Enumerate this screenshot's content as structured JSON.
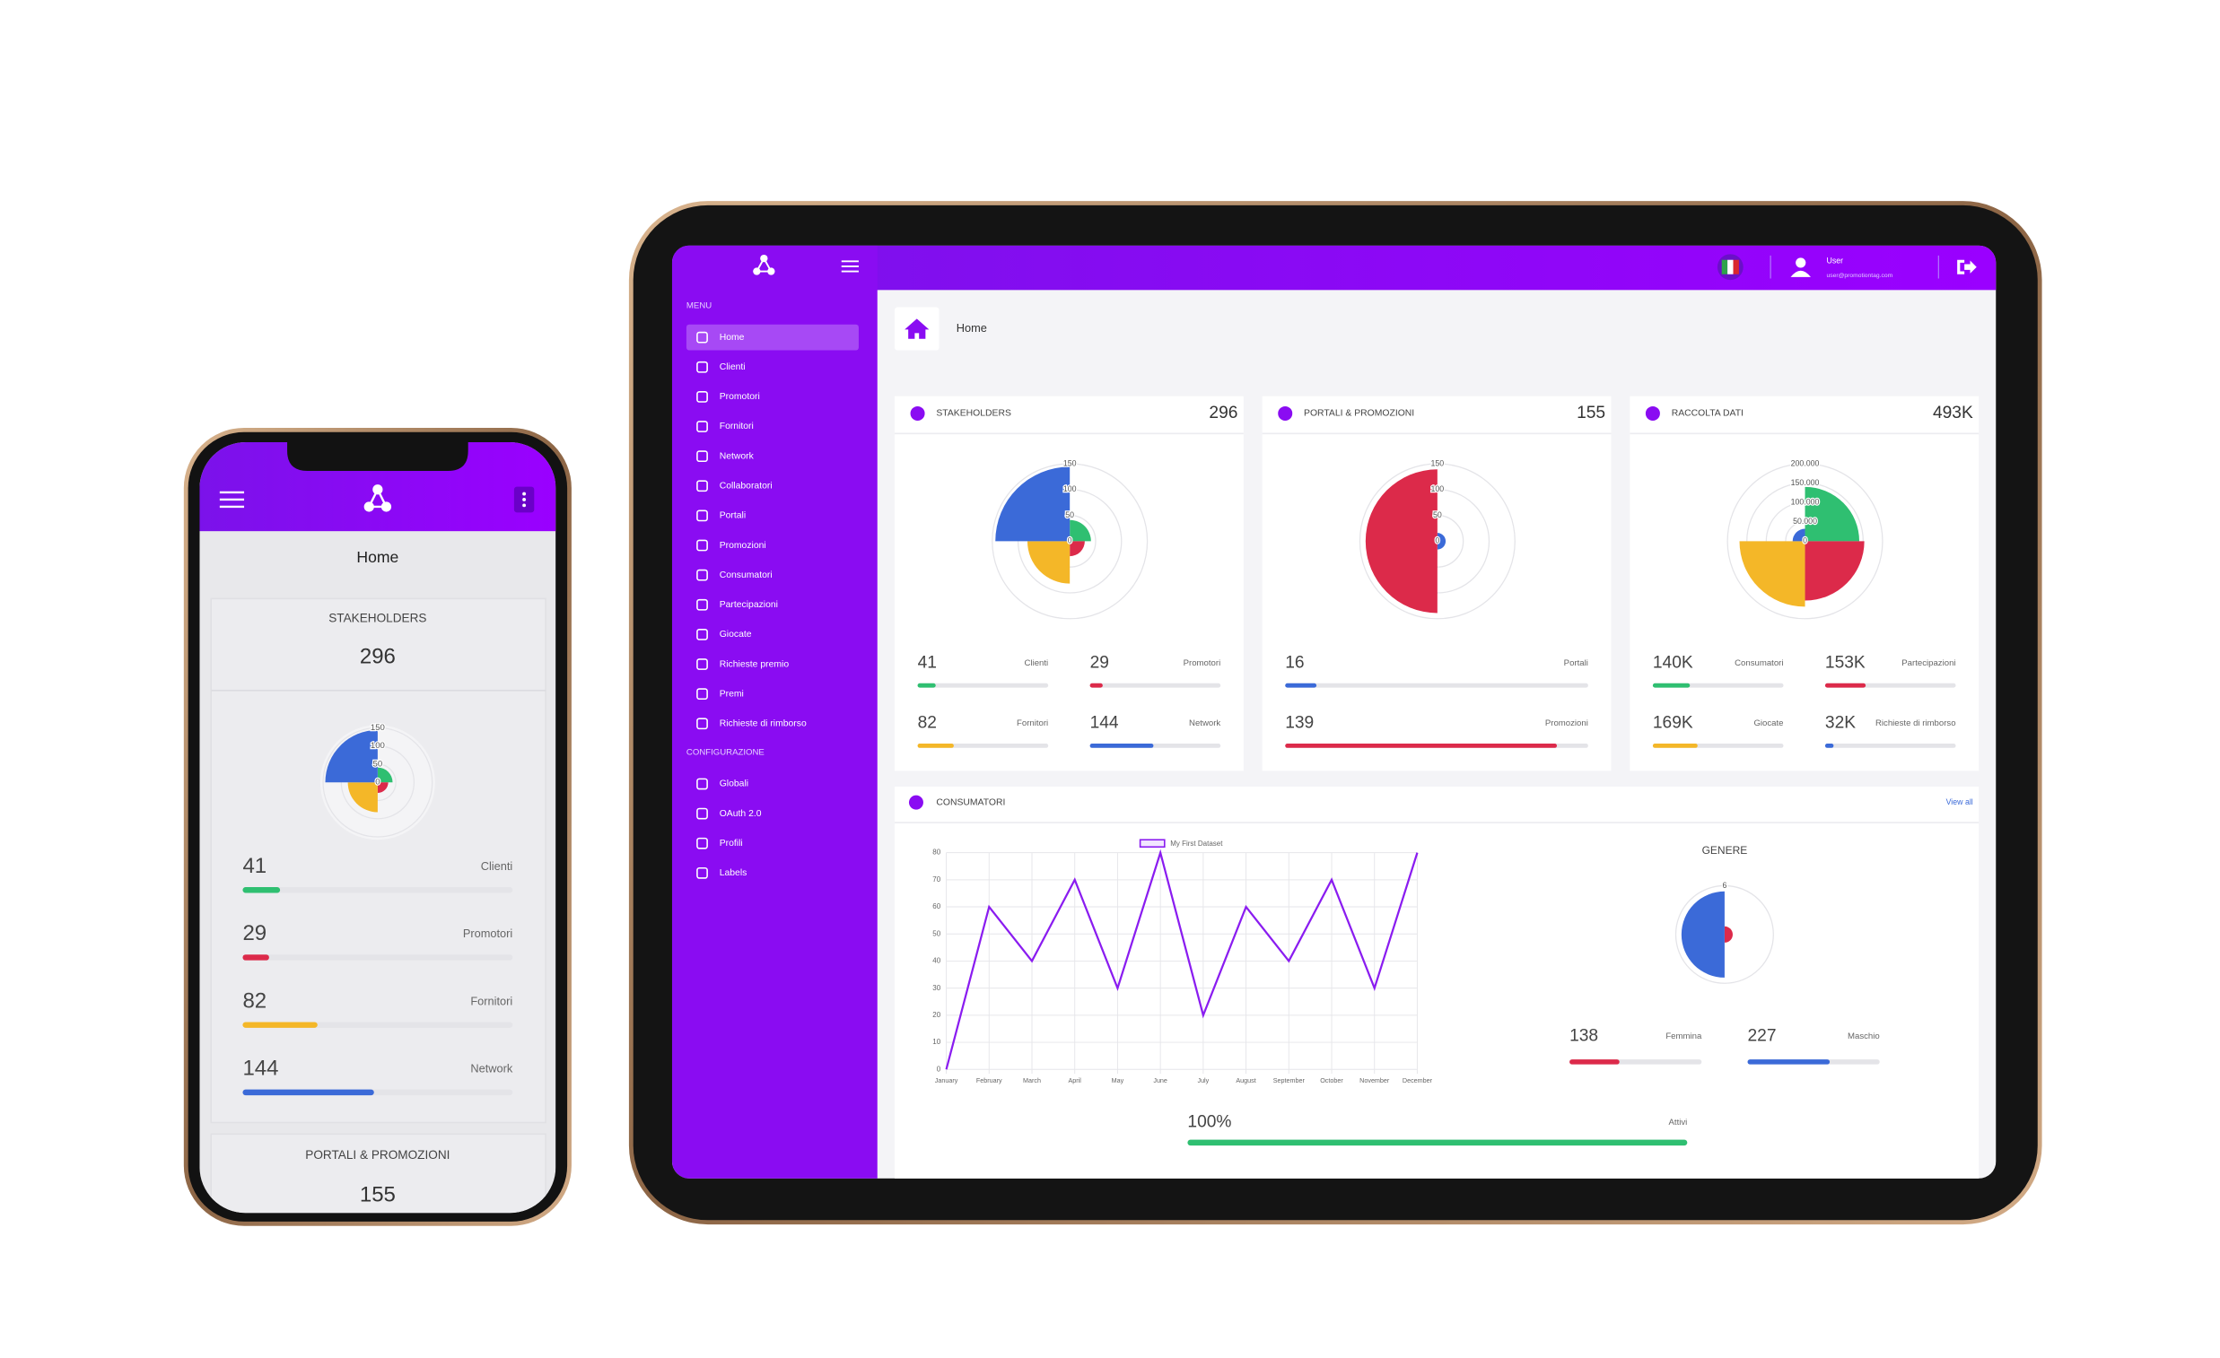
{
  "topbar": {
    "user": "User",
    "email": "user@promotiontag.com"
  },
  "sidebar": {
    "sections": [
      {
        "title": "MENU",
        "items": [
          "Home",
          "Clienti",
          "Promotori",
          "Fornitori",
          "Network",
          "Collaboratori",
          "Portali",
          "Promozioni",
          "Consumatori",
          "Partecipazioni",
          "Giocate",
          "Richieste premio",
          "Premi",
          "Richieste di rimborso"
        ]
      },
      {
        "title": "CONFIGURAZIONE",
        "items": [
          "Globali",
          "OAuth 2.0",
          "Profili",
          "Labels"
        ]
      }
    ]
  },
  "breadcrumb": "Home",
  "cards": [
    {
      "title": "STAKEHOLDERS",
      "total": 296,
      "chart_data": {
        "type": "polar",
        "categories": [
          "Clienti",
          "Promotori",
          "Fornitori",
          "Network"
        ],
        "values": [
          41,
          29,
          82,
          144
        ],
        "colors": [
          "#2fbf71",
          "#dc2a4a",
          "#f4b728",
          "#3b6ad8"
        ],
        "ylim": [
          0,
          150
        ],
        "yticks": [
          0,
          50,
          100,
          150
        ]
      }
    },
    {
      "title": "PORTALI & PROMOZIONI",
      "total": 155,
      "chart_data": {
        "type": "polar",
        "categories": [
          "Portali",
          "Promozioni"
        ],
        "values": [
          16,
          139
        ],
        "colors": [
          "#3b6ad8",
          "#dc2a4a"
        ],
        "ylim": [
          0,
          150
        ],
        "yticks": [
          0,
          50,
          100,
          150
        ]
      }
    },
    {
      "title": "RACCOLTA DATI",
      "total": {
        "value": 493000,
        "label": "493K"
      },
      "chart_data": {
        "type": "polar",
        "categories": [
          "Consumatori",
          "Partecipazioni",
          "Giocate",
          "Richieste di rimborso"
        ],
        "values": [
          140000,
          153000,
          169000,
          32000
        ],
        "value_labels": [
          "140K",
          "153K",
          "169K",
          "32K"
        ],
        "colors": [
          "#2fbf71",
          "#dc2a4a",
          "#f4b728",
          "#3b6ad8"
        ],
        "ylim": [
          0,
          200000
        ],
        "yticks": [
          0,
          {
            "value": 50000,
            "label": "50.000"
          },
          {
            "value": 100000,
            "label": "100.000"
          },
          {
            "value": 150000,
            "label": "150.000"
          },
          {
            "value": 200000,
            "label": "200.000"
          }
        ]
      }
    }
  ],
  "consumatori": {
    "title": "CONSUMATORI",
    "link": "View all",
    "chart_data": {
      "type": "line",
      "categories": [
        "January",
        "February",
        "March",
        "April",
        "May",
        "June",
        "July",
        "August",
        "September",
        "October",
        "November",
        "December"
      ],
      "series": [
        {
          "name": "My First Dataset",
          "color": "#8a1cf0",
          "values": [
            0,
            60,
            40,
            70,
            30,
            80,
            20,
            60,
            40,
            70,
            30,
            80
          ]
        }
      ],
      "ylim": [
        0,
        80
      ],
      "yticks": [
        0,
        10,
        20,
        30,
        40,
        50,
        60,
        70,
        80
      ],
      "grid": true
    },
    "genere": {
      "title": "GENERE",
      "chart_data": {
        "type": "polar",
        "values": [
          1,
          5.3
        ],
        "colors": [
          "#dc2a4a",
          "#3b6ad8"
        ],
        "ylim": [
          0,
          6
        ],
        "yticks": [
          6
        ]
      },
      "stats": {
        "categories": [
          "Femmina",
          "Maschio"
        ],
        "values": [
          138,
          227
        ],
        "colors": [
          "#dc2a4a",
          "#3b6ad8"
        ]
      }
    },
    "attivi": {
      "label": "Attivi",
      "value": 100,
      "value_label": "100%",
      "color": "#2fbf71"
    }
  }
}
